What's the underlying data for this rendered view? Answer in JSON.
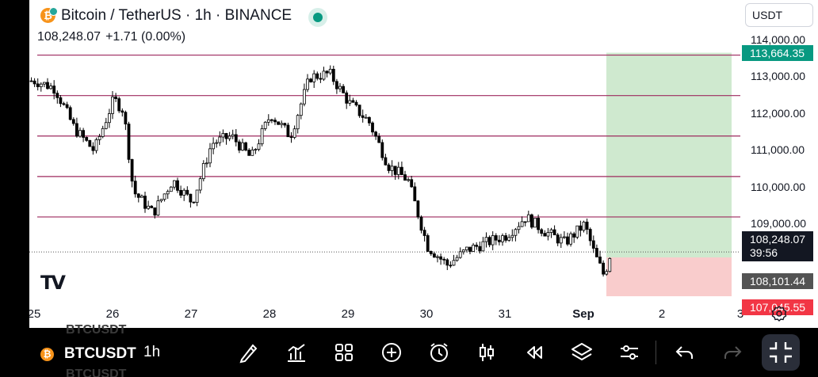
{
  "header": {
    "title": "Bitcoin / TetherUS · 1h · BINANCE",
    "ohlc_price": "108,248.07",
    "ohlc_change": "+1.71 (0.00%)",
    "currency": "USDT",
    "btc_glyph": "₿"
  },
  "colors": {
    "bull": "#ffffff",
    "bear": "#000000",
    "level_line": "#9e2a5e",
    "target_zone": "#cfe9cf",
    "stop_zone": "#f9cccc",
    "target_tag": "#089981",
    "stop_tag": "#f23645",
    "last_tag": "#131722",
    "avg_tag": "#535353"
  },
  "chart_data": {
    "type": "candlestick",
    "symbol": "Bitcoin / TetherUS",
    "interval": "1h",
    "exchange": "BINANCE",
    "y_ticks": [
      "114,000.00",
      "113,000.00",
      "112,000.00",
      "111,000.00",
      "110,000.00",
      "109,000.00"
    ],
    "y_tick_values": [
      114000,
      113000,
      112000,
      111000,
      110000,
      109000
    ],
    "x_labels": [
      "25",
      "26",
      "27",
      "28",
      "29",
      "30",
      "31",
      "Sep",
      "2",
      "3"
    ],
    "x_label_bold": [
      "Sep"
    ],
    "horizontal_levels": [
      113600,
      112500,
      111400,
      110300,
      109200
    ],
    "position": {
      "entry": 108101.44,
      "target": 113664.35,
      "stop": 107045.55
    },
    "last_price": 108248.07,
    "countdown": "39:56",
    "price_labels": {
      "target": "113,664.35",
      "last": "108,248.07",
      "entry": "108,101.44",
      "stop": "107,045.55"
    },
    "approx_close_path": [
      {
        "t": "25 00:00",
        "p": 112900
      },
      {
        "t": "25 06:00",
        "p": 112700
      },
      {
        "t": "25 12:00",
        "p": 111600
      },
      {
        "t": "25 18:00",
        "p": 111000
      },
      {
        "t": "26 00:00",
        "p": 112400
      },
      {
        "t": "26 03:00",
        "p": 112100
      },
      {
        "t": "26 06:00",
        "p": 109900
      },
      {
        "t": "26 12:00",
        "p": 109300
      },
      {
        "t": "26 18:00",
        "p": 110200
      },
      {
        "t": "27 00:00",
        "p": 109600
      },
      {
        "t": "27 06:00",
        "p": 111200
      },
      {
        "t": "27 12:00",
        "p": 111400
      },
      {
        "t": "27 18:00",
        "p": 110800
      },
      {
        "t": "28 00:00",
        "p": 112000
      },
      {
        "t": "28 06:00",
        "p": 111400
      },
      {
        "t": "28 12:00",
        "p": 113000
      },
      {
        "t": "28 18:00",
        "p": 113100
      },
      {
        "t": "29 00:00",
        "p": 112300
      },
      {
        "t": "29 06:00",
        "p": 111800
      },
      {
        "t": "29 12:00",
        "p": 110600
      },
      {
        "t": "29 18:00",
        "p": 110200
      },
      {
        "t": "30 00:00",
        "p": 108400
      },
      {
        "t": "30 06:00",
        "p": 107900
      },
      {
        "t": "30 12:00",
        "p": 108300
      },
      {
        "t": "30 18:00",
        "p": 108500
      },
      {
        "t": "31 00:00",
        "p": 108700
      },
      {
        "t": "31 06:00",
        "p": 109200
      },
      {
        "t": "31 12:00",
        "p": 108800
      },
      {
        "t": "31 18:00",
        "p": 108500
      },
      {
        "t": "Sep 00:00",
        "p": 109000
      },
      {
        "t": "Sep 03:00",
        "p": 108200
      },
      {
        "t": "Sep 06:00",
        "p": 107600
      },
      {
        "t": "Sep 08:00",
        "p": 108248
      }
    ]
  },
  "bottom_bar": {
    "symbol": "BTCUSDT",
    "timeframe": "1h",
    "ghost_symbol": "BTCUSDT",
    "tools": [
      "brush-icon",
      "chart-bars-icon",
      "grid-icon",
      "plus-circle-icon",
      "alarm-clock-icon",
      "candles-icon",
      "rewind-icon",
      "layers-icon",
      "sliders-icon",
      "undo-icon",
      "redo-icon"
    ]
  }
}
